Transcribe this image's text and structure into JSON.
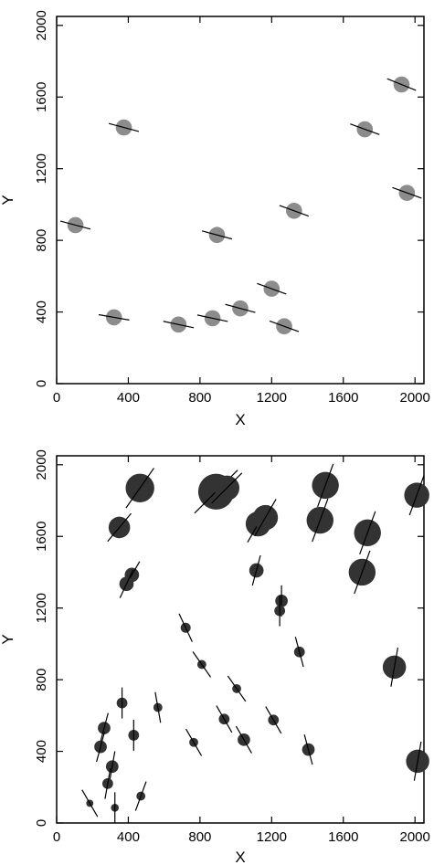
{
  "chart_data": [
    {
      "type": "scatter",
      "xlabel": "X",
      "ylabel": "Y",
      "xlim": [
        0,
        2050
      ],
      "ylim": [
        0,
        2050
      ],
      "xticks": [
        "0",
        "400",
        "800",
        "1200",
        "1600",
        "2000"
      ],
      "yticks": [
        "0",
        "400",
        "800",
        "1200",
        "1600",
        "2000"
      ],
      "xtick_values": [
        0,
        400,
        800,
        1200,
        1600,
        2000
      ],
      "ytick_values": [
        0,
        400,
        800,
        1200,
        1600,
        2000
      ],
      "marker_color": "#8c8c8c",
      "points": [
        {
          "x": 105,
          "y": 885,
          "size": 45,
          "angle": -15
        },
        {
          "x": 375,
          "y": 1430,
          "size": 45,
          "angle": -15
        },
        {
          "x": 320,
          "y": 370,
          "size": 45,
          "angle": -10
        },
        {
          "x": 680,
          "y": 330,
          "size": 45,
          "angle": -12
        },
        {
          "x": 870,
          "y": 365,
          "size": 45,
          "angle": -12
        },
        {
          "x": 895,
          "y": 830,
          "size": 45,
          "angle": -15
        },
        {
          "x": 1025,
          "y": 420,
          "size": 45,
          "angle": -15
        },
        {
          "x": 1200,
          "y": 530,
          "size": 45,
          "angle": -20
        },
        {
          "x": 1270,
          "y": 320,
          "size": 45,
          "angle": -20
        },
        {
          "x": 1325,
          "y": 965,
          "size": 45,
          "angle": -20
        },
        {
          "x": 1720,
          "y": 1420,
          "size": 45,
          "angle": -20
        },
        {
          "x": 1925,
          "y": 1670,
          "size": 45,
          "angle": -22
        },
        {
          "x": 1955,
          "y": 1065,
          "size": 45,
          "angle": -20
        }
      ]
    },
    {
      "type": "scatter",
      "xlabel": "X",
      "ylabel": "Y",
      "xlim": [
        0,
        2050
      ],
      "ylim": [
        0,
        2050
      ],
      "xticks": [
        "0",
        "400",
        "800",
        "1200",
        "1600",
        "2000"
      ],
      "yticks": [
        "0",
        "400",
        "800",
        "1200",
        "1600",
        "2000"
      ],
      "xtick_values": [
        0,
        400,
        800,
        1200,
        1600,
        2000
      ],
      "ytick_values": [
        0,
        400,
        800,
        1200,
        1600,
        2000
      ],
      "marker_color": "#333333",
      "points": [
        {
          "x": 465,
          "y": 1870,
          "size": 80,
          "angle": 55
        },
        {
          "x": 890,
          "y": 1850,
          "size": 100,
          "angle": 45
        },
        {
          "x": 950,
          "y": 1870,
          "size": 70,
          "angle": 45
        },
        {
          "x": 1500,
          "y": 1885,
          "size": 75,
          "angle": 70
        },
        {
          "x": 2010,
          "y": 1830,
          "size": 70,
          "angle": 70
        },
        {
          "x": 350,
          "y": 1650,
          "size": 60,
          "angle": 50
        },
        {
          "x": 1125,
          "y": 1670,
          "size": 70,
          "angle": 60
        },
        {
          "x": 1165,
          "y": 1705,
          "size": 70,
          "angle": 60
        },
        {
          "x": 1470,
          "y": 1690,
          "size": 75,
          "angle": 70
        },
        {
          "x": 1735,
          "y": 1620,
          "size": 75,
          "angle": 70
        },
        {
          "x": 1705,
          "y": 1400,
          "size": 75,
          "angle": 70
        },
        {
          "x": 1885,
          "y": 870,
          "size": 65,
          "angle": 80
        },
        {
          "x": 2015,
          "y": 345,
          "size": 65,
          "angle": 80
        },
        {
          "x": 420,
          "y": 1385,
          "size": 40,
          "angle": 60
        },
        {
          "x": 390,
          "y": 1335,
          "size": 40,
          "angle": 65
        },
        {
          "x": 1115,
          "y": 1410,
          "size": 40,
          "angle": 75
        },
        {
          "x": 1255,
          "y": 1240,
          "size": 35,
          "angle": 90
        },
        {
          "x": 1245,
          "y": 1185,
          "size": 30,
          "angle": 90
        },
        {
          "x": 720,
          "y": 1090,
          "size": 28,
          "angle": -65
        },
        {
          "x": 810,
          "y": 885,
          "size": 25,
          "angle": -55
        },
        {
          "x": 1355,
          "y": 955,
          "size": 30,
          "angle": -75
        },
        {
          "x": 1005,
          "y": 750,
          "size": 25,
          "angle": -55
        },
        {
          "x": 365,
          "y": 670,
          "size": 30,
          "angle": 90
        },
        {
          "x": 565,
          "y": 645,
          "size": 25,
          "angle": -80
        },
        {
          "x": 1210,
          "y": 575,
          "size": 30,
          "angle": -60
        },
        {
          "x": 935,
          "y": 580,
          "size": 30,
          "angle": -60
        },
        {
          "x": 265,
          "y": 530,
          "size": 35,
          "angle": 75
        },
        {
          "x": 430,
          "y": 490,
          "size": 30,
          "angle": 90
        },
        {
          "x": 765,
          "y": 450,
          "size": 25,
          "angle": -60
        },
        {
          "x": 1045,
          "y": 465,
          "size": 35,
          "angle": -60
        },
        {
          "x": 245,
          "y": 425,
          "size": 35,
          "angle": 75
        },
        {
          "x": 1405,
          "y": 410,
          "size": 35,
          "angle": -75
        },
        {
          "x": 310,
          "y": 315,
          "size": 35,
          "angle": 80
        },
        {
          "x": 285,
          "y": 220,
          "size": 30,
          "angle": 80
        },
        {
          "x": 470,
          "y": 150,
          "size": 25,
          "angle": 70
        },
        {
          "x": 185,
          "y": 110,
          "size": 20,
          "angle": -60
        },
        {
          "x": 325,
          "y": 85,
          "size": 22,
          "angle": 90
        }
      ]
    }
  ]
}
